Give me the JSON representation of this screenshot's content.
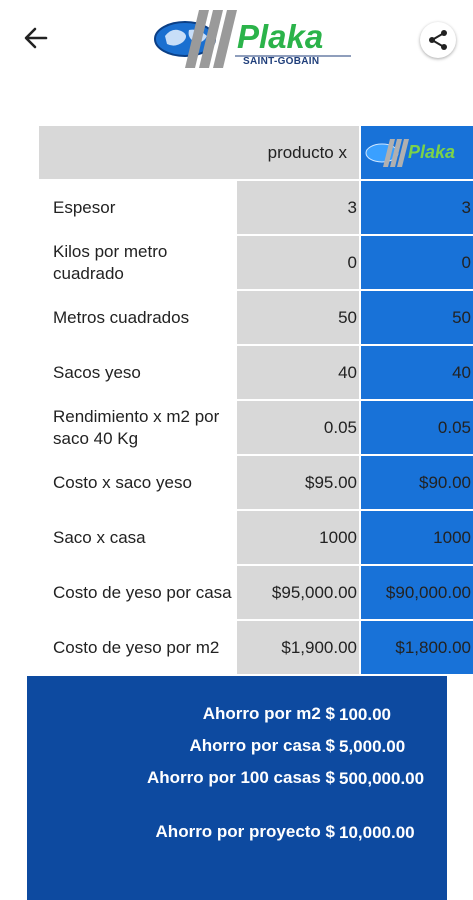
{
  "header": {
    "back_icon": "arrow-left-icon",
    "share_icon": "share-icon",
    "logo_word": "Plaka",
    "logo_sub": "SAINT-GOBAIN"
  },
  "table": {
    "col_product_x": "producto x",
    "col_plaka_logo": "Plaka",
    "rows": [
      {
        "label": "Espesor",
        "x": "3",
        "plaka": "3"
      },
      {
        "label": "Kilos por metro cuadrado",
        "x": "0",
        "plaka": "0"
      },
      {
        "label": "Metros cuadrados",
        "x": "50",
        "plaka": "50"
      },
      {
        "label": "Sacos yeso",
        "x": "40",
        "plaka": "40"
      },
      {
        "label": "Rendimiento x m2 por saco 40 Kg",
        "x": "0.05",
        "plaka": "0.05"
      },
      {
        "label": "Costo x saco yeso",
        "x": "$95.00",
        "plaka": "$90.00"
      },
      {
        "label": "Saco x casa",
        "x": "1000",
        "plaka": "1000"
      },
      {
        "label": "Costo de yeso por casa",
        "x": "$95,000.00",
        "plaka": "$90,000.00"
      },
      {
        "label": "Costo de yeso por m2",
        "x": "$1,900.00",
        "plaka": "$1,800.00"
      }
    ]
  },
  "summary": {
    "rows": [
      {
        "label": "Ahorro por m2 $",
        "value": "100.00"
      },
      {
        "label": "Ahorro por casa $",
        "value": "5,000.00"
      },
      {
        "label": "Ahorro por 100 casas $",
        "value": "500,000.00"
      },
      {
        "label": "Ahorro por proyecto $",
        "value": "10,000.00"
      }
    ]
  },
  "colors": {
    "accent_blue": "#1872d8",
    "summary_blue": "#0d4aa0",
    "gray_cell": "#d8d8d8",
    "logo_green": "#2bb34a"
  }
}
